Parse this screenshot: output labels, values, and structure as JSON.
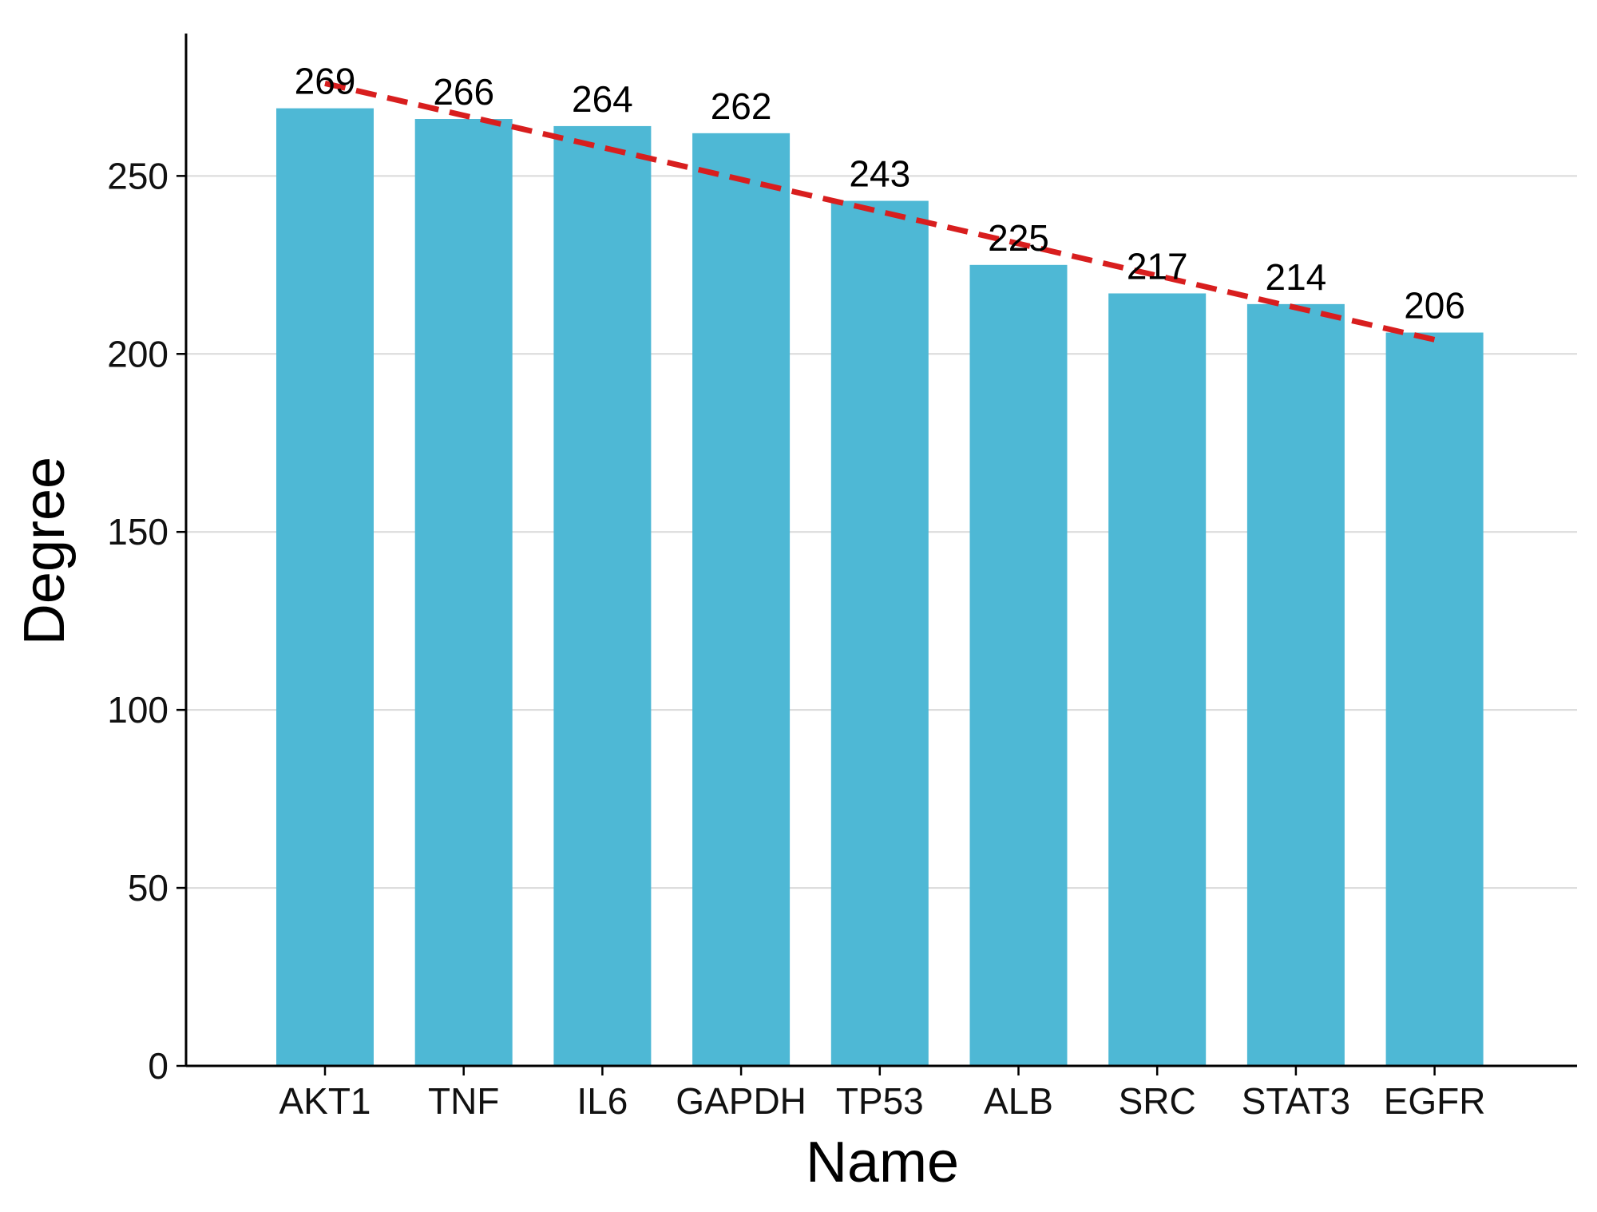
{
  "chart_data": {
    "type": "bar",
    "title": "",
    "xlabel": "Name",
    "ylabel": "Degree",
    "categories": [
      "AKT1",
      "TNF",
      "IL6",
      "GAPDH",
      "TP53",
      "ALB",
      "SRC",
      "STAT3",
      "EGFR"
    ],
    "values": [
      269,
      266,
      264,
      262,
      243,
      225,
      217,
      214,
      206
    ],
    "ylim": [
      0,
      290
    ],
    "yticks": [
      0,
      50,
      100,
      150,
      200,
      250
    ],
    "grid": "horizontal",
    "legend": "none",
    "trend_line": {
      "style": "dashed",
      "from": 276,
      "to": 204
    },
    "colors": {
      "bar": "#4EB8D5",
      "trend": "#D81E1E",
      "grid": "#D9D9D9",
      "axis": "#000000"
    }
  }
}
